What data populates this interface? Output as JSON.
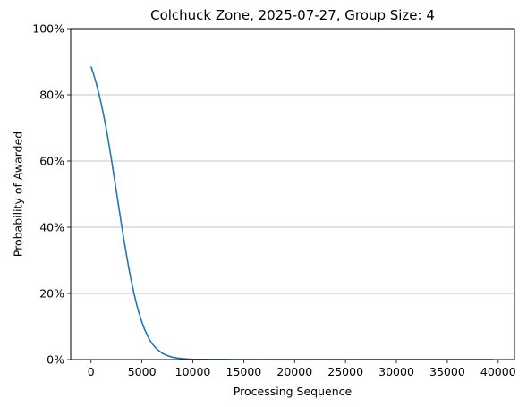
{
  "chart_data": {
    "type": "line",
    "title": "Colchuck Zone, 2025-07-27, Group Size: 4",
    "xlabel": "Processing Sequence",
    "ylabel": "Probability of Awarded",
    "xlim": [
      -2000,
      41600
    ],
    "ylim": [
      0,
      100
    ],
    "x_ticks": [
      0,
      5000,
      10000,
      15000,
      20000,
      25000,
      30000,
      35000,
      40000
    ],
    "x_tick_labels": [
      "0",
      "5000",
      "10000",
      "15000",
      "20000",
      "25000",
      "30000",
      "35000",
      "40000"
    ],
    "y_ticks": [
      0,
      20,
      40,
      60,
      80,
      100
    ],
    "y_tick_labels": [
      "0%",
      "20%",
      "40%",
      "60%",
      "80%",
      "100%"
    ],
    "grid": "horizontal",
    "line_color": "#1f77b4",
    "series": [
      {
        "x": [
          0,
          250,
          500,
          750,
          1000,
          1250,
          1500,
          1750,
          2000,
          2250,
          2500,
          2750,
          3000,
          3250,
          3500,
          3750,
          4000,
          4250,
          4500,
          4750,
          5000,
          5250,
          5500,
          5750,
          6000,
          6500,
          7000,
          7500,
          8000,
          8500,
          9000,
          9500,
          10000,
          11000,
          12000,
          13000,
          14000,
          15000,
          17500,
          20000,
          25000,
          30000,
          35000,
          39500
        ],
        "y": [
          88.5,
          86.2,
          83.6,
          80.6,
          77.3,
          73.6,
          69.6,
          65.2,
          60.5,
          55.6,
          50.6,
          45.6,
          40.6,
          35.8,
          31.3,
          27.0,
          23.1,
          19.6,
          16.4,
          13.7,
          11.3,
          9.2,
          7.5,
          6.0,
          4.8,
          3.1,
          1.9,
          1.2,
          0.7,
          0.45,
          0.28,
          0.17,
          0.1,
          0.05,
          0.02,
          0.01,
          0.0,
          0.0,
          0.0,
          0.0,
          0.0,
          0.0,
          0.0,
          0.0
        ]
      }
    ]
  }
}
